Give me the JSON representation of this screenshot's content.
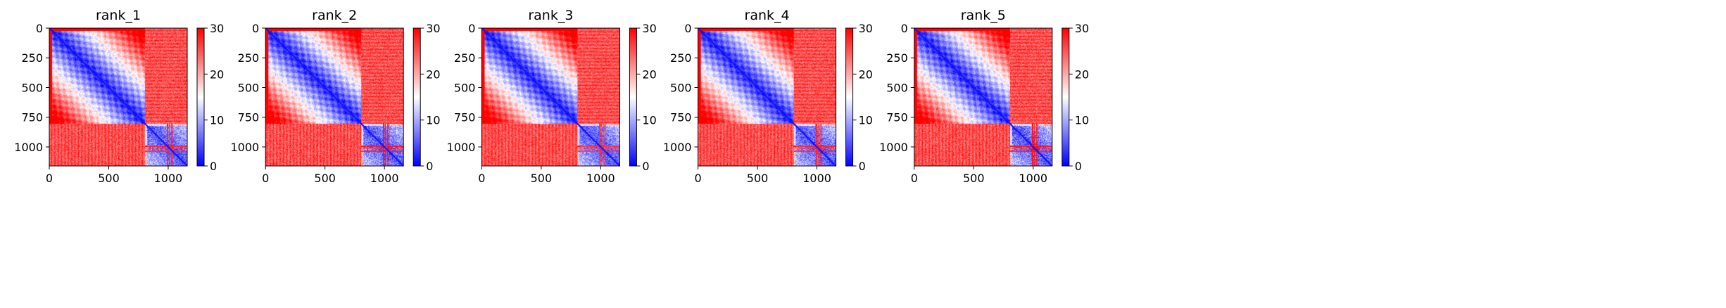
{
  "colorbar": {
    "ticks": [
      "0",
      "10",
      "20",
      "30"
    ],
    "range": [
      0,
      30
    ],
    "colormap": "bwr",
    "colors": {
      "low": "#0000ff",
      "mid": "#ffffff",
      "high": "#ff0000"
    }
  },
  "chart_data": [
    {
      "type": "heatmap",
      "title": "rank_1",
      "xlabel": "",
      "ylabel": "",
      "xticks": [
        "0",
        "500",
        "1000"
      ],
      "yticks": [
        "0",
        "250",
        "500",
        "750",
        "1000"
      ],
      "xlim": [
        0,
        1160
      ],
      "ylim": [
        1160,
        0
      ],
      "clim": [
        0,
        30
      ],
      "colormap": "bwr",
      "block_boundary": 805,
      "description_values": {
        "diag_low": 0,
        "offblock": 30
      }
    },
    {
      "type": "heatmap",
      "title": "rank_2",
      "xlabel": "",
      "ylabel": "",
      "xticks": [
        "0",
        "500",
        "1000"
      ],
      "yticks": [
        "0",
        "250",
        "500",
        "750",
        "1000"
      ],
      "xlim": [
        0,
        1160
      ],
      "ylim": [
        1160,
        0
      ],
      "clim": [
        0,
        30
      ],
      "colormap": "bwr",
      "block_boundary": 805,
      "description_values": {
        "diag_low": 0,
        "offblock": 30
      }
    },
    {
      "type": "heatmap",
      "title": "rank_3",
      "xlabel": "",
      "ylabel": "",
      "xticks": [
        "0",
        "500",
        "1000"
      ],
      "yticks": [
        "0",
        "250",
        "500",
        "750",
        "1000"
      ],
      "xlim": [
        0,
        1160
      ],
      "ylim": [
        1160,
        0
      ],
      "clim": [
        0,
        30
      ],
      "colormap": "bwr",
      "block_boundary": 805,
      "description_values": {
        "diag_low": 0,
        "offblock": 30
      }
    },
    {
      "type": "heatmap",
      "title": "rank_4",
      "xlabel": "",
      "ylabel": "",
      "xticks": [
        "0",
        "500",
        "1000"
      ],
      "yticks": [
        "0",
        "250",
        "500",
        "750",
        "1000"
      ],
      "xlim": [
        0,
        1160
      ],
      "ylim": [
        1160,
        0
      ],
      "clim": [
        0,
        30
      ],
      "colormap": "bwr",
      "block_boundary": 805,
      "description_values": {
        "diag_low": 0,
        "offblock": 30
      }
    },
    {
      "type": "heatmap",
      "title": "rank_5",
      "xlabel": "",
      "ylabel": "",
      "xticks": [
        "0",
        "500",
        "1000"
      ],
      "yticks": [
        "0",
        "250",
        "500",
        "750",
        "1000"
      ],
      "xlim": [
        0,
        1160
      ],
      "ylim": [
        1160,
        0
      ],
      "clim": [
        0,
        30
      ],
      "colormap": "bwr",
      "block_boundary": 805,
      "description_values": {
        "diag_low": 0,
        "offblock": 30
      }
    }
  ]
}
